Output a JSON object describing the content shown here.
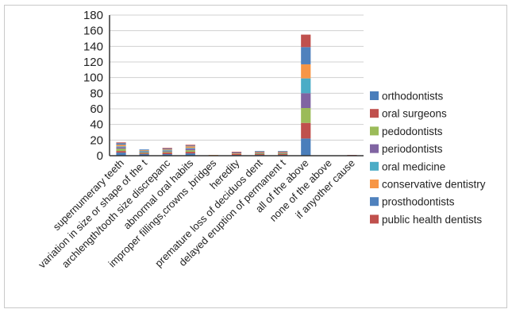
{
  "chart_data": {
    "type": "bar",
    "stacked": true,
    "categories": [
      "supernumerary teeth",
      "variation in size or shape of the t",
      "archlength/tooth size discrepanc",
      "abnormal oral habits",
      "improper fillings,crowns ,bridges",
      "heredity",
      "premature loss of deciduos dent",
      "delayed eruption of permanent t",
      "all of the above",
      "none of the above",
      "if anyother cause"
    ],
    "series": [
      {
        "name": "orthodontists",
        "color": "#4a7ebb",
        "values": [
          4,
          2,
          2,
          3,
          0,
          1,
          1,
          1,
          22,
          0,
          0
        ]
      },
      {
        "name": "oral surgeons",
        "color": "#c0504d",
        "values": [
          2,
          1,
          2,
          2,
          0,
          1,
          1,
          1,
          20,
          0,
          0
        ]
      },
      {
        "name": "pedodontists",
        "color": "#9bbb59",
        "values": [
          3,
          1,
          1,
          2,
          0,
          0,
          1,
          1,
          19,
          0,
          0
        ]
      },
      {
        "name": "periodontists",
        "color": "#8064a2",
        "values": [
          2,
          1,
          1,
          2,
          0,
          0,
          1,
          1,
          19,
          0,
          0
        ]
      },
      {
        "name": "oral medicine",
        "color": "#4bacc6",
        "values": [
          1,
          1,
          1,
          1,
          0,
          0,
          0,
          0,
          19,
          0,
          0
        ]
      },
      {
        "name": "conservative dentistry",
        "color": "#f79646",
        "values": [
          2,
          1,
          1,
          2,
          1,
          1,
          1,
          1,
          18,
          0,
          0
        ]
      },
      {
        "name": "prosthodontists",
        "color": "#4f81bd",
        "values": [
          2,
          1,
          1,
          1,
          0,
          1,
          1,
          1,
          22,
          0,
          0
        ]
      },
      {
        "name": "public health dentists",
        "color": "#c0504d",
        "values": [
          1,
          0,
          1,
          1,
          0,
          1,
          0,
          0,
          16,
          0,
          1
        ]
      }
    ],
    "yticks": [
      0,
      20,
      40,
      60,
      80,
      100,
      120,
      140,
      160,
      180
    ],
    "ylim": [
      0,
      180
    ],
    "grid": true,
    "legend": "right"
  }
}
